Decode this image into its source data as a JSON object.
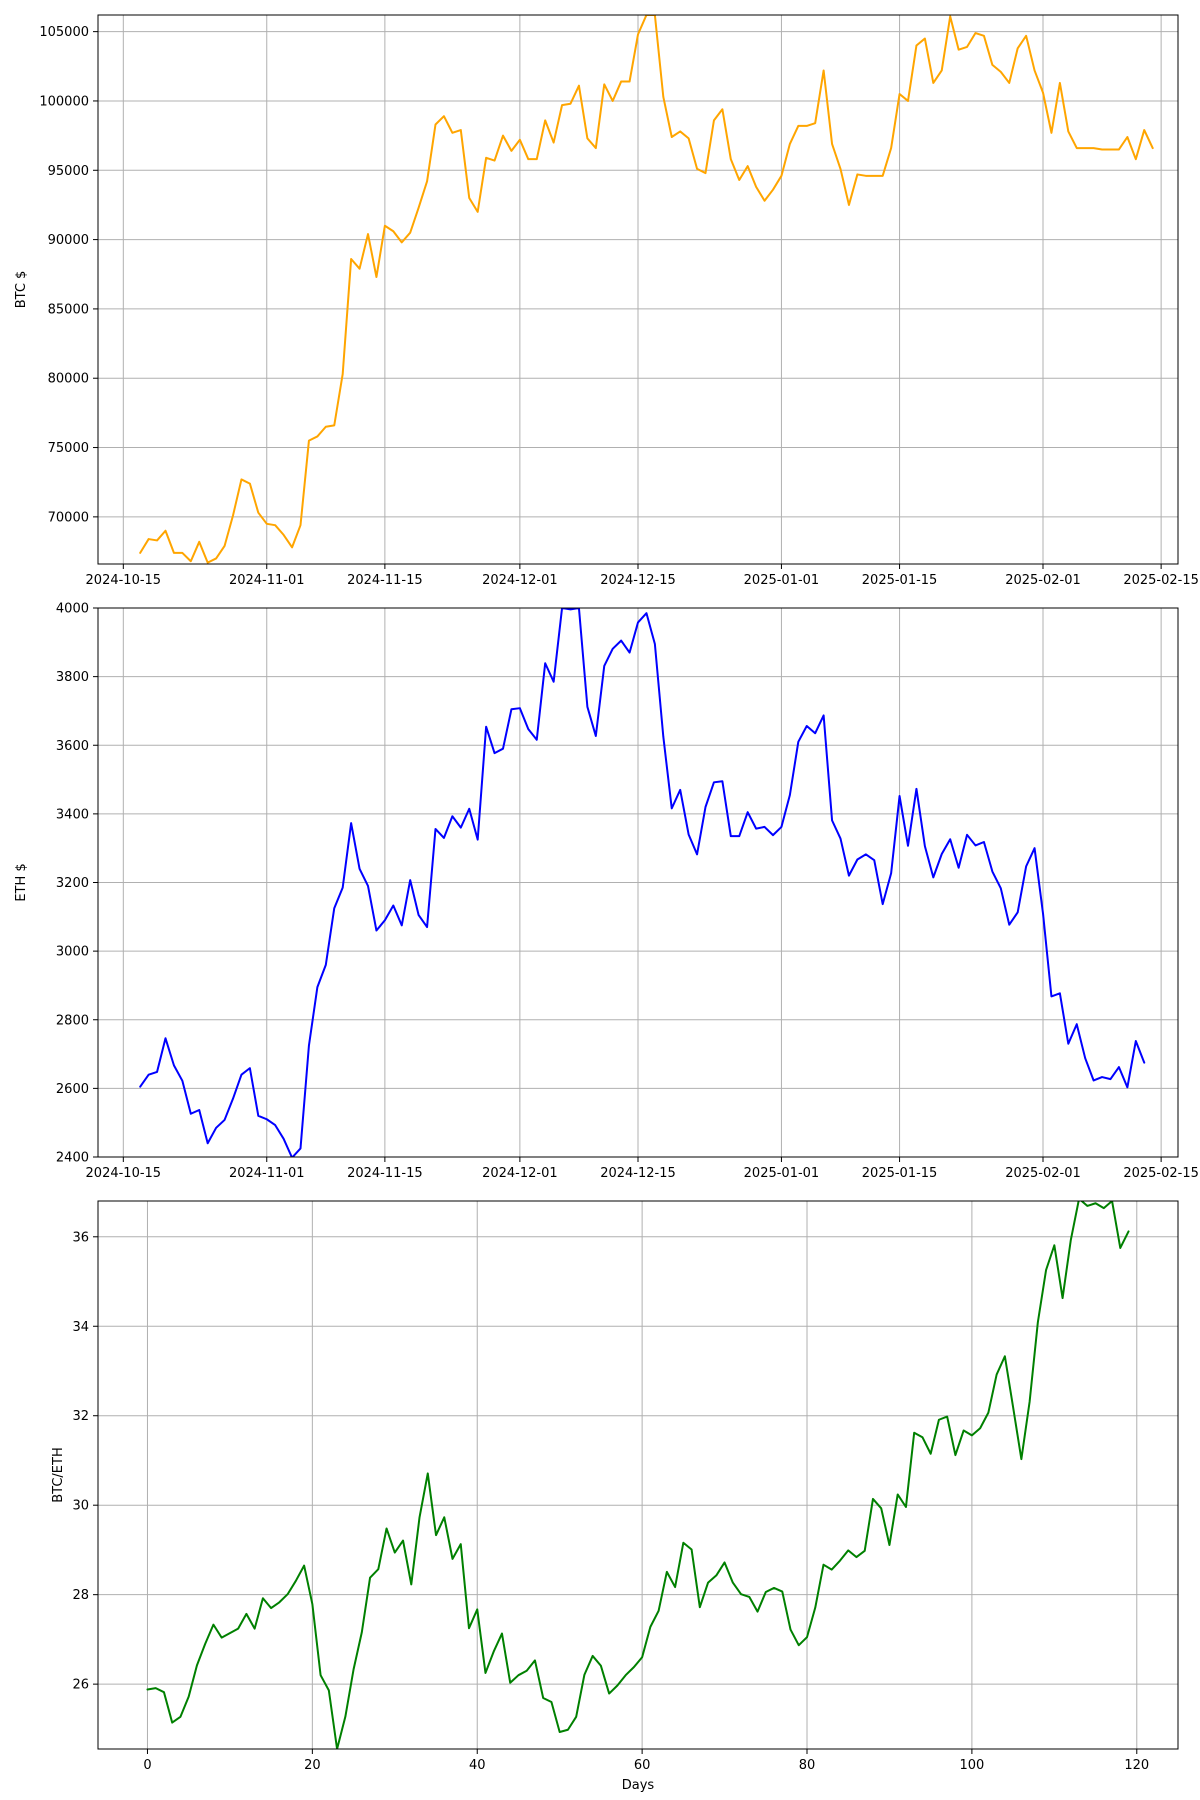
{
  "chart_data": [
    {
      "type": "line",
      "xlabel": "",
      "ylabel": "BTC $",
      "x_type": "date",
      "xlim": [
        "2024-10-12",
        "2025-02-17"
      ],
      "ylim": [
        66600,
        106200
      ],
      "xticks": [
        "2024-10-15",
        "2024-11-01",
        "2024-11-15",
        "2024-12-01",
        "2024-12-15",
        "2025-01-01",
        "2025-01-15",
        "2025-02-01",
        "2025-02-15"
      ],
      "yticks": [
        70000,
        75000,
        80000,
        85000,
        90000,
        95000,
        100000,
        105000
      ],
      "grid": true,
      "series": [
        {
          "name": "",
          "color": "#FFA500",
          "start": "2024-10-17",
          "values": [
            67400,
            68400,
            68300,
            69000,
            67400,
            67400,
            66800,
            68200,
            66700,
            67000,
            67900,
            70100,
            72700,
            72400,
            70300,
            69500,
            69400,
            68700,
            67800,
            69400,
            75500,
            75800,
            76500,
            76600,
            80300,
            88600,
            87900,
            90400,
            87300,
            91000,
            90600,
            89800,
            90500,
            92300,
            94200,
            98300,
            98900,
            97700,
            97900,
            93000,
            92000,
            95900,
            95700,
            97500,
            96400,
            97200,
            95800,
            95800,
            98600,
            97000,
            99700,
            99800,
            101100,
            97300,
            96600,
            101200,
            100000,
            101400,
            101400,
            104800,
            106200,
            106200,
            100300,
            97400,
            97800,
            97300,
            95100,
            94800,
            98600,
            99400,
            95800,
            94300,
            95300,
            93800,
            92800,
            93600,
            94600,
            96900,
            98200,
            98200,
            98400,
            102200,
            96900,
            95100,
            92500,
            94700,
            94600,
            94600,
            94600,
            96600,
            100500,
            100000,
            104000,
            104500,
            101300,
            102200,
            106100,
            103700,
            103900,
            104900,
            104700,
            102600,
            102100,
            101300,
            103800,
            104700,
            102200,
            100600,
            97700,
            101300,
            97800,
            96600,
            96600,
            96600,
            96500,
            96500,
            96500,
            97400,
            95800,
            97900,
            96600
          ]
        }
      ]
    },
    {
      "type": "line",
      "xlabel": "",
      "ylabel": "ETH $",
      "x_type": "date",
      "xlim": [
        "2024-10-12",
        "2025-02-17"
      ],
      "ylim": [
        2400,
        4000
      ],
      "xticks": [
        "2024-10-15",
        "2024-11-01",
        "2024-11-15",
        "2024-12-01",
        "2024-12-15",
        "2025-01-01",
        "2025-01-15",
        "2025-02-01",
        "2025-02-15"
      ],
      "yticks": [
        2400,
        2600,
        2800,
        3000,
        3200,
        3400,
        3600,
        3800,
        4000
      ],
      "grid": true,
      "series": [
        {
          "name": "",
          "color": "#0000FF",
          "start": "2024-10-17",
          "values": [
            2605,
            2640,
            2648,
            2746,
            2667,
            2622,
            2526,
            2537,
            2440,
            2485,
            2508,
            2570,
            2640,
            2659,
            2520,
            2510,
            2493,
            2453,
            2398,
            2425,
            2725,
            2895,
            2960,
            3125,
            3185,
            3373,
            3240,
            3190,
            3060,
            3090,
            3133,
            3075,
            3207,
            3105,
            3070,
            3356,
            3330,
            3393,
            3360,
            3415,
            3325,
            3654,
            3577,
            3590,
            3705,
            3708,
            3647,
            3616,
            3839,
            3785,
            4000,
            3996,
            4000,
            3712,
            3627,
            3831,
            3881,
            3905,
            3870,
            3958,
            3985,
            3895,
            3625,
            3416,
            3470,
            3340,
            3282,
            3420,
            3492,
            3495,
            3335,
            3335,
            3405,
            3357,
            3362,
            3338,
            3362,
            3455,
            3610,
            3656,
            3635,
            3687,
            3381,
            3328,
            3220,
            3267,
            3282,
            3265,
            3137,
            3227,
            3452,
            3307,
            3473,
            3306,
            3215,
            3283,
            3326,
            3243,
            3339,
            3308,
            3318,
            3232,
            3183,
            3077,
            3113,
            3247,
            3300,
            3110,
            2868,
            2877,
            2730,
            2787,
            2688,
            2623,
            2633,
            2627,
            2662,
            2603,
            2738,
            2675
          ]
        }
      ]
    },
    {
      "type": "line",
      "xlabel": "Days",
      "ylabel": "BTC/ETH",
      "x_type": "number",
      "xlim": [
        -6,
        125
      ],
      "ylim": [
        24.55,
        36.8
      ],
      "xticks": [
        0,
        20,
        40,
        60,
        80,
        100,
        120
      ],
      "yticks": [
        26,
        28,
        30,
        32,
        34,
        36
      ],
      "grid": true,
      "series": [
        {
          "name": "",
          "color": "#008000",
          "values": [
            25.88,
            25.91,
            25.82,
            25.14,
            25.27,
            25.72,
            26.42,
            26.9,
            27.33,
            27.04,
            27.14,
            27.24,
            27.57,
            27.24,
            27.92,
            27.7,
            27.83,
            28.01,
            28.31,
            28.65,
            27.79,
            26.2,
            25.86,
            24.55,
            25.27,
            26.33,
            27.16,
            28.38,
            28.57,
            29.48,
            28.94,
            29.21,
            28.23,
            29.73,
            30.71,
            29.33,
            29.73,
            28.8,
            29.13,
            27.25,
            27.67,
            26.25,
            26.73,
            27.13,
            26.03,
            26.2,
            26.3,
            26.53,
            25.69,
            25.6,
            24.93,
            24.98,
            25.27,
            26.21,
            26.63,
            26.41,
            25.79,
            25.97,
            26.2,
            26.38,
            26.6,
            27.28,
            27.64,
            28.51,
            28.17,
            29.16,
            29.01,
            27.72,
            28.27,
            28.43,
            28.72,
            28.27,
            28.01,
            27.95,
            27.62,
            28.06,
            28.15,
            28.07,
            27.22,
            26.87,
            27.05,
            27.71,
            28.67,
            28.56,
            28.76,
            28.99,
            28.84,
            28.98,
            30.14,
            29.93,
            29.11,
            30.24,
            29.96,
            31.62,
            31.52,
            31.15,
            31.91,
            31.98,
            31.12,
            31.67,
            31.56,
            31.72,
            32.07,
            32.92,
            33.33,
            32.19,
            31.03,
            32.31,
            34.09,
            35.26,
            35.81,
            34.63,
            35.93,
            36.85,
            36.69,
            36.75,
            36.64,
            36.8,
            35.75,
            36.12
          ]
        }
      ]
    }
  ]
}
